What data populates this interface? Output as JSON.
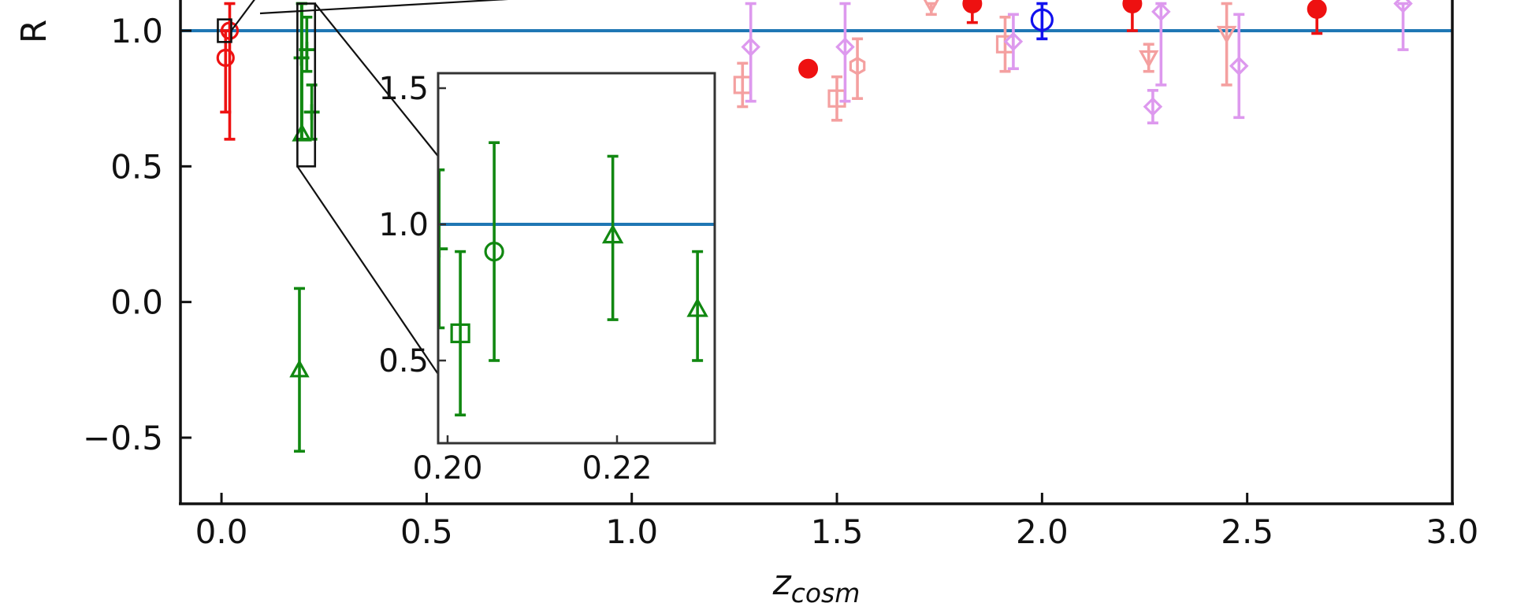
{
  "chart_data": [
    {
      "type": "scatter",
      "title": "",
      "xlabel": "z",
      "xlabel_subscript": "cosm",
      "ylabel": "R",
      "xlim": [
        -0.1,
        3.0
      ],
      "ylim": [
        -0.75,
        1.1
      ],
      "x_ticks": [
        0.0,
        0.5,
        1.0,
        1.5,
        2.0,
        2.5,
        3.0
      ],
      "x_tick_labels": [
        "0.0",
        "0.5",
        "1.0",
        "1.5",
        "2.0",
        "2.5",
        "3.0"
      ],
      "y_ticks": [
        -0.5,
        0.0,
        0.5,
        1.0
      ],
      "y_tick_labels": [
        "−0.5",
        "0.0",
        "0.5",
        "1.0"
      ],
      "grid": false,
      "reference_line": {
        "y": 1.0,
        "color": "#1f77b4"
      },
      "colors": {
        "red": "#ee1111",
        "green": "#118811",
        "blue": "#1111ee",
        "pink": "#f4a0a0",
        "violet": "#dd99ee",
        "axis": "#111111",
        "inset_edge": "#333333"
      },
      "zoom_box": {
        "x": [
          0.185,
          0.228
        ],
        "y": [
          0.5,
          1.1
        ]
      },
      "small_box": {
        "x": [
          -0.005,
          0.02
        ],
        "y": [
          0.97,
          1.03
        ]
      },
      "series": [
        {
          "color": "red",
          "marker": "circle",
          "points": [
            {
              "x": 0.02,
              "y": 1.0,
              "ylo": 0.6,
              "yhi": 1.1
            },
            {
              "x": 0.01,
              "y": 0.9,
              "ylo": 0.7,
              "yhi": 1.0
            }
          ]
        },
        {
          "color": "red",
          "marker": "filled-circle",
          "points": [
            {
              "x": 1.43,
              "y": 0.86,
              "ylo": 0.86,
              "yhi": 0.86
            },
            {
              "x": 1.83,
              "y": 1.1,
              "ylo": 1.03,
              "yhi": 1.15
            },
            {
              "x": 2.22,
              "y": 1.1,
              "ylo": 1.0,
              "yhi": 1.15
            },
            {
              "x": 2.67,
              "y": 1.08,
              "ylo": 0.99,
              "yhi": 1.14
            }
          ]
        },
        {
          "color": "green",
          "marker": "triangle",
          "points": [
            {
              "x": 0.19,
              "y": -0.25,
              "ylo": -0.55,
              "yhi": 0.05
            },
            {
              "x": 0.196,
              "y": 0.62,
              "ylo": 0.6,
              "yhi": 1.1
            }
          ]
        },
        {
          "color": "green",
          "marker": "plus",
          "points": [
            {
              "x": 0.195,
              "y": 0.9,
              "ylo": 0.6,
              "yhi": 1.1
            },
            {
              "x": 0.208,
              "y": 0.93,
              "ylo": 0.85,
              "yhi": 1.05
            },
            {
              "x": 0.22,
              "y": 0.7,
              "ylo": 0.6,
              "yhi": 0.8
            }
          ]
        },
        {
          "color": "blue",
          "marker": "circle",
          "points": [
            {
              "x": 2.0,
              "y": 1.04,
              "ylo": 0.97,
              "yhi": 1.1
            }
          ]
        },
        {
          "color": "pink",
          "marker": "square",
          "points": [
            {
              "x": 1.27,
              "y": 0.8,
              "ylo": 0.72,
              "yhi": 0.88
            },
            {
              "x": 1.5,
              "y": 0.75,
              "ylo": 0.67,
              "yhi": 0.83
            },
            {
              "x": 1.91,
              "y": 0.95,
              "ylo": 0.85,
              "yhi": 1.05
            }
          ]
        },
        {
          "color": "pink",
          "marker": "hexagon",
          "points": [
            {
              "x": 1.55,
              "y": 0.87,
              "ylo": 0.75,
              "yhi": 0.97
            }
          ]
        },
        {
          "color": "pink",
          "marker": "triangle-down",
          "points": [
            {
              "x": 1.73,
              "y": 1.1,
              "ylo": 1.06,
              "yhi": 1.1
            },
            {
              "x": 2.26,
              "y": 0.9,
              "ylo": 0.85,
              "yhi": 0.95
            },
            {
              "x": 2.45,
              "y": 0.99,
              "ylo": 0.8,
              "yhi": 1.1
            }
          ]
        },
        {
          "color": "violet",
          "marker": "diamond",
          "points": [
            {
              "x": 1.29,
              "y": 0.94,
              "ylo": 0.74,
              "yhi": 1.1
            },
            {
              "x": 1.52,
              "y": 0.94,
              "ylo": 0.74,
              "yhi": 1.1
            },
            {
              "x": 1.93,
              "y": 0.96,
              "ylo": 0.86,
              "yhi": 1.06
            },
            {
              "x": 2.27,
              "y": 0.72,
              "ylo": 0.66,
              "yhi": 0.78
            },
            {
              "x": 2.29,
              "y": 1.07,
              "ylo": 0.8,
              "yhi": 1.1
            },
            {
              "x": 2.48,
              "y": 0.87,
              "ylo": 0.68,
              "yhi": 1.06
            },
            {
              "x": 2.88,
              "y": 1.1,
              "ylo": 0.93,
              "yhi": 1.1
            }
          ]
        }
      ]
    },
    {
      "type": "scatter",
      "title": "",
      "xlabel": "",
      "ylabel": "",
      "xlim": [
        0.198,
        0.231
      ],
      "ylim": [
        0.2,
        1.58
      ],
      "x_ticks": [
        0.2,
        0.22
      ],
      "x_tick_labels": [
        "0.20",
        "0.22"
      ],
      "y_ticks": [
        0.5,
        1.0,
        1.5
      ],
      "y_tick_labels": [
        "0.5",
        "1.0",
        "1.5"
      ],
      "grid": false,
      "reference_line": {
        "y": 1.0,
        "color": "#1f77b4"
      },
      "series": [
        {
          "color": "green",
          "marker": "plus",
          "points": [
            {
              "x": 0.199,
              "y": 0.91,
              "ylo": 0.62,
              "yhi": 1.2
            }
          ]
        },
        {
          "color": "green",
          "marker": "square",
          "points": [
            {
              "x": 0.2015,
              "y": 0.6,
              "ylo": 0.3,
              "yhi": 0.9
            }
          ]
        },
        {
          "color": "green",
          "marker": "circle",
          "points": [
            {
              "x": 0.2055,
              "y": 0.9,
              "ylo": 0.5,
              "yhi": 1.3
            }
          ]
        },
        {
          "color": "green",
          "marker": "triangle",
          "points": [
            {
              "x": 0.2195,
              "y": 0.96,
              "ylo": 0.65,
              "yhi": 1.25
            },
            {
              "x": 0.2295,
              "y": 0.69,
              "ylo": 0.5,
              "yhi": 0.9
            }
          ]
        }
      ]
    }
  ]
}
